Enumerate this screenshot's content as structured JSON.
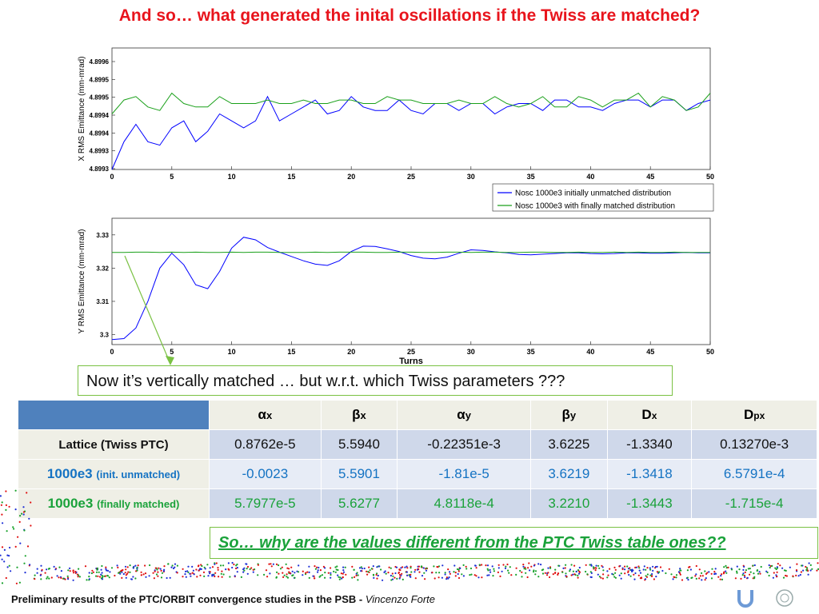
{
  "title": "And so… what generated the inital oscillations if the Twiss are matched?",
  "colors": {
    "series_unmatched": "#0000ff",
    "series_matched": "#1aa01a",
    "title": "#e8141c",
    "table_header": "#4f81bd"
  },
  "chart_data": [
    {
      "type": "line",
      "ylabel": "X RMS Emittance (mm-mrad)",
      "xlabel": "",
      "xlim": [
        0,
        50
      ],
      "ylim": [
        4.8993,
        4.89965
      ],
      "xticks": [
        0,
        5,
        10,
        15,
        20,
        25,
        30,
        35,
        40,
        45,
        50
      ],
      "yticks": [
        "4.8993",
        "4.8993",
        "4.8994",
        "4.8994",
        "4.8995",
        "4.8995",
        "4.8996"
      ],
      "legend_position": "below-right",
      "legend": [
        "Nosc 1000e3 initially unmatched distribution",
        "Nosc 1000e3 with finally matched distribution"
      ],
      "series": [
        {
          "name": "Nosc 1000e3 initially unmatched distribution",
          "color": "#0000ff",
          "x": [
            0,
            1,
            2,
            3,
            4,
            5,
            6,
            7,
            8,
            9,
            10,
            11,
            12,
            13,
            14,
            15,
            16,
            17,
            18,
            19,
            20,
            21,
            22,
            23,
            24,
            25,
            26,
            27,
            28,
            29,
            30,
            31,
            32,
            33,
            34,
            35,
            36,
            37,
            38,
            39,
            40,
            41,
            42,
            43,
            44,
            45,
            46,
            47,
            48,
            49,
            50
          ],
          "y": [
            4.8993,
            4.89938,
            4.89943,
            4.89938,
            4.89937,
            4.89942,
            4.89944,
            4.89938,
            4.89941,
            4.89946,
            4.89944,
            4.89942,
            4.89944,
            4.89951,
            4.89944,
            4.89946,
            4.89948,
            4.8995,
            4.89946,
            4.89947,
            4.89951,
            4.89948,
            4.89947,
            4.89947,
            4.8995,
            4.89947,
            4.89946,
            4.89949,
            4.89949,
            4.89947,
            4.89949,
            4.89949,
            4.89946,
            4.89948,
            4.89949,
            4.89949,
            4.89947,
            4.8995,
            4.8995,
            4.89948,
            4.89948,
            4.89947,
            4.89949,
            4.8995,
            4.8995,
            4.89948,
            4.8995,
            4.8995,
            4.89947,
            4.89949,
            4.8995
          ]
        },
        {
          "name": "Nosc 1000e3 with finally matched distribution",
          "color": "#1aa01a",
          "x": [
            0,
            1,
            2,
            3,
            4,
            5,
            6,
            7,
            8,
            9,
            10,
            11,
            12,
            13,
            14,
            15,
            16,
            17,
            18,
            19,
            20,
            21,
            22,
            23,
            24,
            25,
            26,
            27,
            28,
            29,
            30,
            31,
            32,
            33,
            34,
            35,
            36,
            37,
            38,
            39,
            40,
            41,
            42,
            43,
            44,
            45,
            46,
            47,
            48,
            49,
            50
          ],
          "y": [
            4.89946,
            4.8995,
            4.89951,
            4.89948,
            4.89947,
            4.89952,
            4.89949,
            4.89948,
            4.89948,
            4.89951,
            4.89949,
            4.89949,
            4.89949,
            4.8995,
            4.89949,
            4.89949,
            4.8995,
            4.89949,
            4.89949,
            4.8995,
            4.8995,
            4.89949,
            4.89949,
            4.89951,
            4.8995,
            4.8995,
            4.89949,
            4.89949,
            4.89949,
            4.8995,
            4.89949,
            4.89949,
            4.89951,
            4.89949,
            4.89948,
            4.89949,
            4.89951,
            4.89948,
            4.89948,
            4.89951,
            4.8995,
            4.89948,
            4.8995,
            4.8995,
            4.89952,
            4.89948,
            4.89951,
            4.8995,
            4.89947,
            4.89948,
            4.89952
          ]
        }
      ]
    },
    {
      "type": "line",
      "ylabel": "Y RMS Emittance (mm-mrad)",
      "xlabel": "Turns",
      "xlim": [
        0,
        50
      ],
      "ylim": [
        3.297,
        3.335
      ],
      "xticks": [
        0,
        5,
        10,
        15,
        20,
        25,
        30,
        35,
        40,
        45,
        50
      ],
      "yticks": [
        "3.3",
        "3.31",
        "3.32",
        "3.33"
      ],
      "series": [
        {
          "name": "Nosc 1000e3 initially unmatched distribution",
          "color": "#0000ff",
          "x": [
            0,
            1,
            2,
            3,
            4,
            5,
            6,
            7,
            8,
            9,
            10,
            11,
            12,
            13,
            14,
            15,
            16,
            17,
            18,
            19,
            20,
            21,
            22,
            23,
            24,
            25,
            26,
            27,
            28,
            29,
            30,
            31,
            32,
            33,
            34,
            35,
            36,
            37,
            38,
            39,
            40,
            41,
            42,
            43,
            44,
            45,
            46,
            47,
            48,
            49,
            50
          ],
          "y": [
            3.2985,
            3.2988,
            3.302,
            3.31,
            3.32,
            3.3245,
            3.321,
            3.315,
            3.3138,
            3.319,
            3.326,
            3.3293,
            3.3285,
            3.3262,
            3.3248,
            3.3235,
            3.3222,
            3.3212,
            3.3208,
            3.3222,
            3.325,
            3.3266,
            3.3265,
            3.3258,
            3.325,
            3.3238,
            3.323,
            3.3228,
            3.3233,
            3.3245,
            3.3255,
            3.3253,
            3.3249,
            3.3246,
            3.3241,
            3.324,
            3.3242,
            3.3244,
            3.3246,
            3.3246,
            3.3244,
            3.3243,
            3.3244,
            3.3246,
            3.3246,
            3.3245,
            3.3245,
            3.3246,
            3.3247,
            3.3246,
            3.3246
          ]
        },
        {
          "name": "Nosc 1000e3 with finally matched distribution",
          "color": "#1aa01a",
          "x": [
            0,
            1,
            2,
            3,
            4,
            5,
            6,
            7,
            8,
            9,
            10,
            11,
            12,
            13,
            14,
            15,
            16,
            17,
            18,
            19,
            20,
            21,
            22,
            23,
            24,
            25,
            26,
            27,
            28,
            29,
            30,
            31,
            32,
            33,
            34,
            35,
            36,
            37,
            38,
            39,
            40,
            41,
            42,
            43,
            44,
            45,
            46,
            47,
            48,
            49,
            50
          ],
          "y": [
            3.3247,
            3.3247,
            3.3248,
            3.3248,
            3.3247,
            3.3248,
            3.3247,
            3.3248,
            3.3247,
            3.3247,
            3.3248,
            3.3247,
            3.3248,
            3.3248,
            3.3247,
            3.3247,
            3.3247,
            3.3248,
            3.3247,
            3.3248,
            3.3248,
            3.3248,
            3.3247,
            3.3247,
            3.3248,
            3.3248,
            3.3247,
            3.3247,
            3.3248,
            3.3248,
            3.3247,
            3.3248,
            3.3248,
            3.3247,
            3.3247,
            3.3248,
            3.3248,
            3.3247,
            3.3247,
            3.3248,
            3.3247,
            3.3247,
            3.3248,
            3.3247,
            3.3248,
            3.3247,
            3.3247,
            3.3248,
            3.3247,
            3.3247,
            3.3247
          ]
        }
      ]
    }
  ],
  "callout_text": "Now it’s vertically matched … but w.r.t. which Twiss parameters ???",
  "table": {
    "headers": [
      {
        "sym": "α",
        "sub": "x"
      },
      {
        "sym": "β",
        "sub": "x"
      },
      {
        "sym": "α",
        "sub": "y"
      },
      {
        "sym": "β",
        "sub": "y"
      },
      {
        "sym": "D",
        "sub": "x"
      },
      {
        "sym": "D",
        "sub": "px"
      }
    ],
    "rows": [
      {
        "label": "Lattice (Twiss PTC)",
        "label_small": "",
        "cells": [
          "0.8762e-5",
          "5.5940",
          "-0.22351e-3",
          "3.6225",
          "-1.3340",
          "0.13270e-3"
        ]
      },
      {
        "label": "1000e3",
        "label_small": "(init. unmatched)",
        "cells": [
          "-0.0023",
          "5.5901",
          "-1.81e-5",
          "3.6219",
          "-1.3418",
          "6.5791e-4"
        ]
      },
      {
        "label": "1000e3",
        "label_small": "(finally matched)",
        "cells": [
          "5.7977e-5",
          "5.6277",
          "4.8118e-4",
          "3.2210",
          "-1.3443",
          "-1.715e-4"
        ]
      }
    ]
  },
  "question_text": "So… why are the values different from the PTC Twiss table ones??",
  "footer": {
    "bold": "Preliminary results of the PTC/ORBIT convergence studies in the PSB - ",
    "italic": "Vincenzo Forte"
  },
  "logos": [
    "university-logo-icon",
    "cern-logo-icon"
  ]
}
